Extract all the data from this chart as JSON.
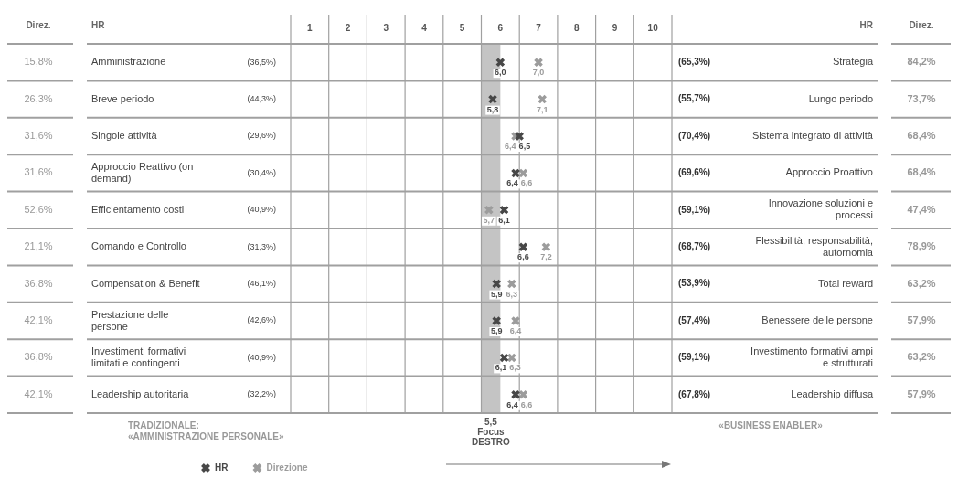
{
  "chart_data": {
    "type": "scatter",
    "orientation": "horizontal",
    "marker": "cross",
    "grid": true,
    "legend": "bottom left",
    "categories": [
      "Amministrazione",
      "Breve periodo",
      "Singole attività",
      "Approccio Reattivo (on demand)",
      "Efficientamento costi",
      "Comando e Controllo",
      "Compensation & Benefit",
      "Prestazione delle persone",
      "Investimenti formativi limitati e contingenti",
      "Leadership autoritaria"
    ],
    "y2_categories": [
      "Strategia",
      "Lungo periodo",
      "Sistema integrato di attività",
      "Approccio Proattivo",
      "Innovazione soluzioni e processi",
      "Flessibilità, responsabilità, autornomia",
      "Total reward",
      "Benessere delle persone",
      "Investimento formativi ampi e strutturati",
      "Leadership diffusa"
    ],
    "x2lim": [
      0.5,
      10.5
    ],
    "x2ticks": [
      {
        "value": 0.5,
        "label": null
      },
      1,
      {
        "value": 1.5,
        "label": null
      },
      2,
      {
        "value": 2.5,
        "label": null
      },
      3,
      {
        "value": 3.5,
        "label": null
      },
      4,
      {
        "value": 4.5,
        "label": null
      },
      5,
      {
        "value": 5.5,
        "label": null
      },
      6,
      {
        "value": 6.5,
        "label": null
      },
      7,
      {
        "value": 7.5,
        "label": null
      },
      8,
      {
        "value": 8.5,
        "label": null
      },
      9,
      {
        "value": 9.5,
        "label": null
      },
      10,
      {
        "value": 10.5,
        "label": null
      }
    ],
    "series": [
      {
        "name": "HR",
        "axis": "x2",
        "color": "#474747",
        "values": [
          6.0,
          5.8,
          6.5,
          6.4,
          6.1,
          6.6,
          5.9,
          5.9,
          6.1,
          6.4
        ],
        "value_labels": [
          "6,0",
          "5,8",
          "6,5",
          "6,4",
          "6,1",
          "6,6",
          "5,9",
          "5,9",
          "6,1",
          "6,4"
        ]
      },
      {
        "name": "Direzione",
        "axis": "x2",
        "color": "#9c9c9c",
        "values": [
          7.0,
          7.1,
          6.4,
          6.6,
          5.7,
          7.2,
          6.3,
          6.4,
          6.3,
          6.6
        ],
        "value_labels": [
          "7,0",
          "7,1",
          "6,4",
          "6,6",
          "5,7",
          "7,2",
          "6,3",
          "6,4",
          "6,3",
          "6,6"
        ]
      }
    ],
    "bands": [
      {
        "axis": "x2",
        "from": 5.5,
        "to": 6.0,
        "label": "5,5\nFocus\nDESTRO",
        "color": "#c4c4c4"
      }
    ],
    "annotations": [
      "Direz.",
      "HR",
      "HR",
      "Direz.",
      "15,8%",
      "26,3%",
      "31,6%",
      "31,6%",
      "52,6%",
      "21,1%",
      "36,8%",
      "42,1%",
      "36,8%",
      "42,1%",
      "(36,5%)",
      "(44,3%)",
      "(29,6%)",
      "(30,4%)",
      "(40,9%)",
      "(31,3%)",
      "(46,1%)",
      "(42,6%)",
      "(40,9%)",
      "(32,2%)",
      "(65,3%)",
      "(55,7%)",
      "(70,4%)",
      "(69,6%)",
      "(59,1%)",
      "(68,7%)",
      "(53,9%)",
      "(57,4%)",
      "(59,1%)",
      "(67,8%)",
      "84,2%",
      "73,7%",
      "68,4%",
      "68,4%",
      "47,4%",
      "78,9%",
      "63,2%",
      "57,9%",
      "63,2%",
      "57,9%",
      "TRADIZIONALE:\n«AMMINISTRAZIONE PERSONALE»",
      "«BUSINESS ENABLER»"
    ]
  }
}
